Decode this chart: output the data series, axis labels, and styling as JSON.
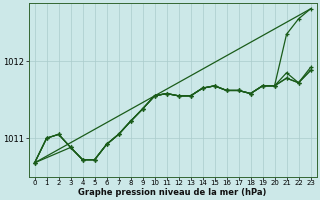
{
  "background_color": "#cce8e8",
  "grid_color": "#aacccc",
  "line_color": "#1a5c1a",
  "xlabel": "Graphe pression niveau de la mer (hPa)",
  "ylim": [
    1010.5,
    1012.75
  ],
  "xlim": [
    -0.5,
    23.5
  ],
  "yticks": [
    1011,
    1012
  ],
  "xticks": [
    0,
    1,
    2,
    3,
    4,
    5,
    6,
    7,
    8,
    9,
    10,
    11,
    12,
    13,
    14,
    15,
    16,
    17,
    18,
    19,
    20,
    21,
    22,
    23
  ],
  "line1_x": [
    0,
    23
  ],
  "line1_y": [
    1010.68,
    1012.68
  ],
  "line2_x": [
    0,
    1,
    2,
    3,
    4,
    5,
    6,
    7,
    8,
    9,
    10,
    11,
    12,
    13,
    14,
    15,
    16,
    17,
    18,
    19,
    20,
    21,
    22,
    23
  ],
  "line2_y": [
    1010.68,
    1011.0,
    1011.05,
    1010.88,
    1010.72,
    1010.72,
    1010.92,
    1011.05,
    1011.22,
    1011.38,
    1011.55,
    1011.58,
    1011.55,
    1011.55,
    1011.65,
    1011.68,
    1011.62,
    1011.62,
    1011.58,
    1011.68,
    1011.68,
    1011.85,
    1011.72,
    1011.92
  ],
  "line3_x": [
    0,
    1,
    2,
    3,
    4,
    5,
    6,
    7,
    8,
    9,
    10,
    11,
    12,
    13,
    14,
    15,
    16,
    17,
    18,
    19,
    20,
    21,
    22,
    23
  ],
  "line3_y": [
    1010.68,
    1011.0,
    1011.05,
    1010.88,
    1010.72,
    1010.72,
    1010.92,
    1011.05,
    1011.22,
    1011.38,
    1011.55,
    1011.58,
    1011.55,
    1011.55,
    1011.65,
    1011.68,
    1011.62,
    1011.62,
    1011.58,
    1011.68,
    1011.68,
    1011.78,
    1011.72,
    1011.88
  ],
  "line4_x": [
    0,
    1,
    2,
    3,
    4,
    5,
    6,
    7,
    8,
    9,
    10,
    11,
    12,
    13,
    14,
    15,
    16,
    17,
    18,
    19,
    20,
    21,
    22,
    23
  ],
  "line4_y": [
    1010.68,
    1011.0,
    1011.05,
    1010.88,
    1010.72,
    1010.72,
    1010.92,
    1011.05,
    1011.22,
    1011.38,
    1011.55,
    1011.58,
    1011.55,
    1011.55,
    1011.65,
    1011.68,
    1011.62,
    1011.62,
    1011.58,
    1011.68,
    1011.68,
    1012.35,
    1012.55,
    1012.68
  ],
  "line5_x": [
    0,
    3,
    4,
    5,
    6,
    7,
    8,
    9,
    10,
    11,
    12,
    13,
    14,
    15,
    16,
    17,
    18,
    19,
    20,
    21,
    22,
    23
  ],
  "line5_y": [
    1010.68,
    1010.88,
    1010.72,
    1010.72,
    1010.92,
    1011.05,
    1011.22,
    1011.38,
    1011.55,
    1011.58,
    1011.55,
    1011.55,
    1011.65,
    1011.68,
    1011.62,
    1011.62,
    1011.58,
    1011.68,
    1011.68,
    1011.78,
    1011.72,
    1011.88
  ]
}
